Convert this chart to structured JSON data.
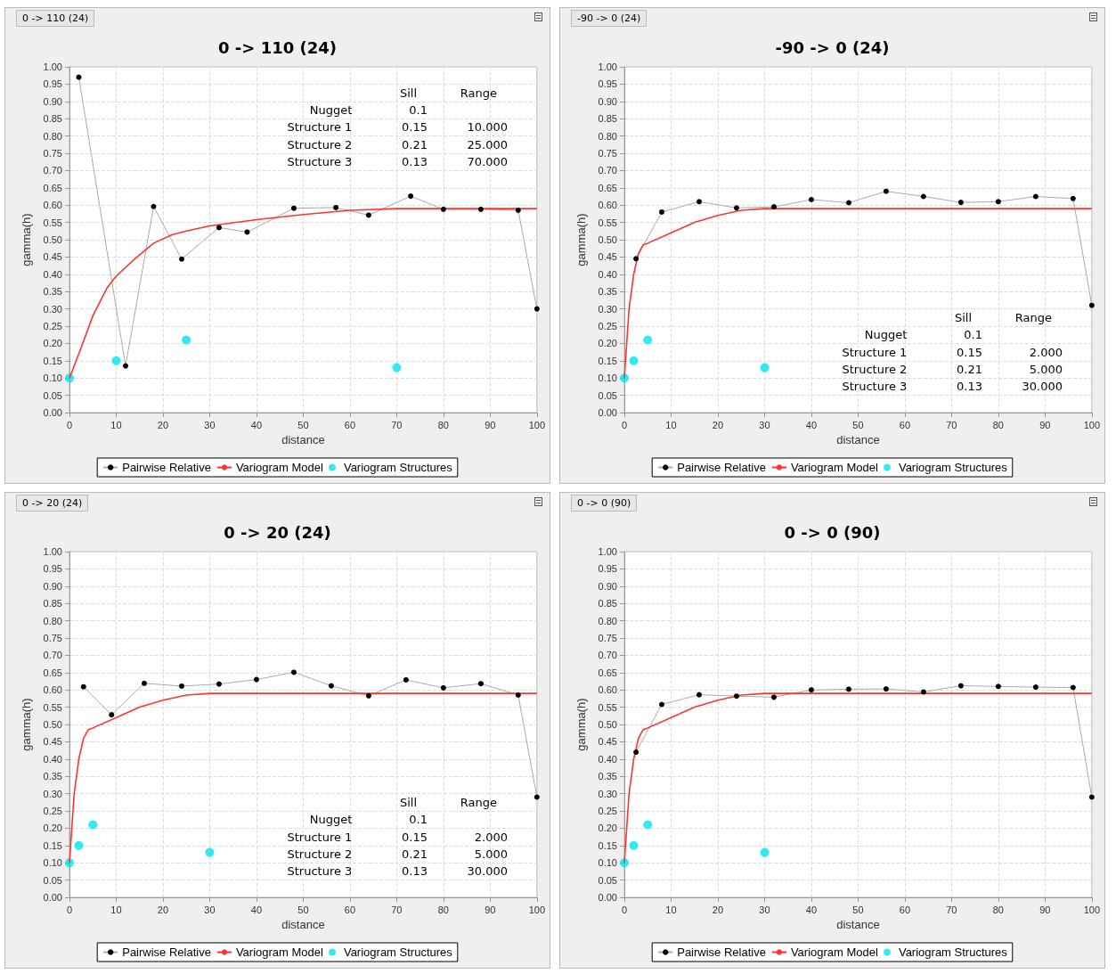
{
  "chart_data": [
    {
      "type": "line",
      "title": "0 -> 110 (24)",
      "xlabel": "distance",
      "ylabel": "gamma(h)",
      "xlim": [
        0,
        100
      ],
      "xticks": [
        0,
        10,
        20,
        30,
        40,
        50,
        60,
        70,
        80,
        90,
        100
      ],
      "ylim": [
        0,
        1
      ],
      "yticks": [
        {
          "value": 0,
          "label": "0.00"
        },
        {
          "value": 0.05,
          "label": "0.05"
        },
        {
          "value": 0.1,
          "label": "0.10"
        },
        {
          "value": 0.15,
          "label": "0.15"
        },
        {
          "value": 0.2,
          "label": "0.20"
        },
        {
          "value": 0.25,
          "label": "0.25"
        },
        {
          "value": 0.3,
          "label": "0.30"
        },
        {
          "value": 0.35,
          "label": "0.35"
        },
        {
          "value": 0.4,
          "label": "0.40"
        },
        {
          "value": 0.45,
          "label": "0.45"
        },
        {
          "value": 0.5,
          "label": "0.50"
        },
        {
          "value": 0.55,
          "label": "0.55"
        },
        {
          "value": 0.6,
          "label": "0.60"
        },
        {
          "value": 0.65,
          "label": "0.65"
        },
        {
          "value": 0.7,
          "label": "0.70"
        },
        {
          "value": 0.75,
          "label": "0.75"
        },
        {
          "value": 0.8,
          "label": "0.80"
        },
        {
          "value": 0.85,
          "label": "0.85"
        },
        {
          "value": 0.9,
          "label": "0.90"
        },
        {
          "value": 0.95,
          "label": "0.95"
        },
        {
          "value": 1,
          "label": "1.00"
        }
      ],
      "grid": true,
      "legend": "bottom",
      "annotations": [
        "0 -> 110 (24)",
        "Sill",
        "Range",
        "Nugget",
        "0.1",
        "Structure 1",
        "0.15",
        "10.000",
        "Structure 2",
        "0.21",
        "25.000",
        "Structure 3",
        "0.13",
        "70.000"
      ],
      "series": [
        {
          "name": "Pairwise Relative",
          "marker": "circle",
          "color": "#000000",
          "x": [
            2,
            12,
            18,
            24,
            32,
            38,
            48,
            57,
            64,
            73,
            80,
            88,
            96,
            100
          ],
          "values": [
            0.97,
            0.135,
            0.596,
            0.444,
            0.535,
            0.522,
            0.591,
            0.593,
            0.571,
            0.626,
            0.588,
            0.588,
            0.585,
            0.3
          ]
        },
        {
          "name": "Variogram Model",
          "marker": "none",
          "color": "#ff3333",
          "x": [
            0,
            2,
            5,
            8,
            10,
            14,
            18,
            22,
            25,
            30,
            40,
            50,
            60,
            70,
            100
          ],
          "values": [
            0.1,
            0.17,
            0.28,
            0.36,
            0.395,
            0.445,
            0.49,
            0.515,
            0.525,
            0.54,
            0.558,
            0.573,
            0.585,
            0.59,
            0.59
          ]
        },
        {
          "name": "Variogram Structures",
          "type": "scatter",
          "marker": "circle",
          "color": "#00e5ee",
          "x": [
            0,
            10,
            25,
            70
          ],
          "values": [
            0.1,
            0.15,
            0.21,
            0.13
          ]
        }
      ]
    },
    {
      "type": "line",
      "title": "-90 -> 0 (24)",
      "xlabel": "distance",
      "ylabel": "gamma(h)",
      "xlim": [
        0,
        100
      ],
      "xticks": [
        0,
        10,
        20,
        30,
        40,
        50,
        60,
        70,
        80,
        90,
        100
      ],
      "ylim": [
        0,
        1
      ],
      "yticks": [
        {
          "value": 0,
          "label": "0.00"
        },
        {
          "value": 0.05,
          "label": "0.05"
        },
        {
          "value": 0.1,
          "label": "0.10"
        },
        {
          "value": 0.15,
          "label": "0.15"
        },
        {
          "value": 0.2,
          "label": "0.20"
        },
        {
          "value": 0.25,
          "label": "0.25"
        },
        {
          "value": 0.3,
          "label": "0.30"
        },
        {
          "value": 0.35,
          "label": "0.35"
        },
        {
          "value": 0.4,
          "label": "0.40"
        },
        {
          "value": 0.45,
          "label": "0.45"
        },
        {
          "value": 0.5,
          "label": "0.50"
        },
        {
          "value": 0.55,
          "label": "0.55"
        },
        {
          "value": 0.6,
          "label": "0.60"
        },
        {
          "value": 0.65,
          "label": "0.65"
        },
        {
          "value": 0.7,
          "label": "0.70"
        },
        {
          "value": 0.75,
          "label": "0.75"
        },
        {
          "value": 0.8,
          "label": "0.80"
        },
        {
          "value": 0.85,
          "label": "0.85"
        },
        {
          "value": 0.9,
          "label": "0.90"
        },
        {
          "value": 0.95,
          "label": "0.95"
        },
        {
          "value": 1,
          "label": "1.00"
        }
      ],
      "grid": true,
      "legend": "bottom",
      "annotations": [
        "-90 -> 0 (24)",
        "Sill",
        "Range",
        "Nugget",
        "0.1",
        "Structure 1",
        "0.15",
        "2.000",
        "Structure 2",
        "0.21",
        "5.000",
        "Structure 3",
        "0.13",
        "30.000"
      ],
      "series": [
        {
          "name": "Pairwise Relative",
          "marker": "circle",
          "color": "#000000",
          "x": [
            2.5,
            8,
            16,
            24,
            32,
            40,
            48,
            56,
            64,
            72,
            80,
            88,
            96,
            100
          ],
          "values": [
            0.445,
            0.58,
            0.61,
            0.592,
            0.595,
            0.616,
            0.607,
            0.64,
            0.625,
            0.608,
            0.61,
            0.625,
            0.619,
            0.31
          ]
        },
        {
          "name": "Variogram Model",
          "marker": "none",
          "color": "#ff3333",
          "x": [
            0,
            1,
            2,
            3,
            4,
            5,
            10,
            15,
            20,
            25,
            30,
            100
          ],
          "values": [
            0.1,
            0.3,
            0.4,
            0.46,
            0.485,
            0.49,
            0.52,
            0.55,
            0.57,
            0.585,
            0.59,
            0.59
          ]
        },
        {
          "name": "Variogram Structures",
          "type": "scatter",
          "marker": "circle",
          "color": "#00e5ee",
          "x": [
            0,
            2,
            5,
            30
          ],
          "values": [
            0.1,
            0.15,
            0.21,
            0.13
          ]
        }
      ]
    },
    {
      "type": "line",
      "title": "0 -> 20 (24)",
      "xlabel": "distance",
      "ylabel": "gamma(h)",
      "xlim": [
        0,
        100
      ],
      "xticks": [
        0,
        10,
        20,
        30,
        40,
        50,
        60,
        70,
        80,
        90,
        100
      ],
      "ylim": [
        0,
        1
      ],
      "yticks": [
        {
          "value": 0,
          "label": "0.00"
        },
        {
          "value": 0.05,
          "label": "0.05"
        },
        {
          "value": 0.1,
          "label": "0.10"
        },
        {
          "value": 0.15,
          "label": "0.15"
        },
        {
          "value": 0.2,
          "label": "0.20"
        },
        {
          "value": 0.25,
          "label": "0.25"
        },
        {
          "value": 0.3,
          "label": "0.30"
        },
        {
          "value": 0.35,
          "label": "0.35"
        },
        {
          "value": 0.4,
          "label": "0.40"
        },
        {
          "value": 0.45,
          "label": "0.45"
        },
        {
          "value": 0.5,
          "label": "0.50"
        },
        {
          "value": 0.55,
          "label": "0.55"
        },
        {
          "value": 0.6,
          "label": "0.60"
        },
        {
          "value": 0.65,
          "label": "0.65"
        },
        {
          "value": 0.7,
          "label": "0.70"
        },
        {
          "value": 0.75,
          "label": "0.75"
        },
        {
          "value": 0.8,
          "label": "0.80"
        },
        {
          "value": 0.85,
          "label": "0.85"
        },
        {
          "value": 0.9,
          "label": "0.90"
        },
        {
          "value": 0.95,
          "label": "0.95"
        },
        {
          "value": 1,
          "label": "1.00"
        }
      ],
      "grid": true,
      "legend": "bottom",
      "annotations": [
        "0 -> 20 (24)",
        "Sill",
        "Range",
        "Nugget",
        "0.1",
        "Structure 1",
        "0.15",
        "2.000",
        "Structure 2",
        "0.21",
        "5.000",
        "Structure 3",
        "0.13",
        "30.000"
      ],
      "series": [
        {
          "name": "Pairwise Relative",
          "marker": "circle",
          "color": "#000000",
          "x": [
            3,
            9,
            16,
            24,
            32,
            40,
            48,
            56,
            64,
            72,
            80,
            88,
            96,
            100
          ],
          "values": [
            0.609,
            0.528,
            0.619,
            0.611,
            0.617,
            0.63,
            0.651,
            0.612,
            0.583,
            0.629,
            0.606,
            0.618,
            0.585,
            0.29
          ]
        },
        {
          "name": "Variogram Model",
          "marker": "none",
          "color": "#ff3333",
          "x": [
            0,
            1,
            2,
            3,
            4,
            5,
            10,
            15,
            20,
            25,
            30,
            100
          ],
          "values": [
            0.1,
            0.3,
            0.4,
            0.46,
            0.485,
            0.49,
            0.52,
            0.55,
            0.57,
            0.585,
            0.59,
            0.59
          ]
        },
        {
          "name": "Variogram Structures",
          "type": "scatter",
          "marker": "circle",
          "color": "#00e5ee",
          "x": [
            0,
            2,
            5,
            30
          ],
          "values": [
            0.1,
            0.15,
            0.21,
            0.13
          ]
        }
      ]
    },
    {
      "type": "line",
      "title": "0 -> 0 (90)",
      "xlabel": "distance",
      "ylabel": "gamma(h)",
      "xlim": [
        0,
        100
      ],
      "xticks": [
        0,
        10,
        20,
        30,
        40,
        50,
        60,
        70,
        80,
        90,
        100
      ],
      "ylim": [
        0,
        1
      ],
      "yticks": [
        {
          "value": 0,
          "label": "0.00"
        },
        {
          "value": 0.05,
          "label": "0.05"
        },
        {
          "value": 0.1,
          "label": "0.10"
        },
        {
          "value": 0.15,
          "label": "0.15"
        },
        {
          "value": 0.2,
          "label": "0.20"
        },
        {
          "value": 0.25,
          "label": "0.25"
        },
        {
          "value": 0.3,
          "label": "0.30"
        },
        {
          "value": 0.35,
          "label": "0.35"
        },
        {
          "value": 0.4,
          "label": "0.40"
        },
        {
          "value": 0.45,
          "label": "0.45"
        },
        {
          "value": 0.5,
          "label": "0.50"
        },
        {
          "value": 0.55,
          "label": "0.55"
        },
        {
          "value": 0.6,
          "label": "0.60"
        },
        {
          "value": 0.65,
          "label": "0.65"
        },
        {
          "value": 0.7,
          "label": "0.70"
        },
        {
          "value": 0.75,
          "label": "0.75"
        },
        {
          "value": 0.8,
          "label": "0.80"
        },
        {
          "value": 0.85,
          "label": "0.85"
        },
        {
          "value": 0.9,
          "label": "0.90"
        },
        {
          "value": 0.95,
          "label": "0.95"
        },
        {
          "value": 1,
          "label": "1.00"
        }
      ],
      "grid": true,
      "legend": "bottom",
      "annotations": [
        "0 -> 0 (90)"
      ],
      "series": [
        {
          "name": "Pairwise Relative",
          "marker": "circle",
          "color": "#000000",
          "x": [
            2.5,
            8,
            16,
            24,
            32,
            40,
            48,
            56,
            64,
            72,
            80,
            88,
            96,
            100
          ],
          "values": [
            0.42,
            0.558,
            0.586,
            0.582,
            0.579,
            0.6,
            0.602,
            0.603,
            0.594,
            0.612,
            0.61,
            0.608,
            0.607,
            0.29
          ]
        },
        {
          "name": "Variogram Model",
          "marker": "none",
          "color": "#ff3333",
          "x": [
            0,
            1,
            2,
            3,
            4,
            5,
            10,
            15,
            20,
            25,
            30,
            100
          ],
          "values": [
            0.1,
            0.3,
            0.4,
            0.46,
            0.485,
            0.49,
            0.52,
            0.55,
            0.57,
            0.585,
            0.59,
            0.59
          ]
        },
        {
          "name": "Variogram Structures",
          "type": "scatter",
          "marker": "circle",
          "color": "#00e5ee",
          "x": [
            0,
            2,
            5,
            30
          ],
          "values": [
            0.1,
            0.15,
            0.21,
            0.13
          ]
        }
      ]
    }
  ]
}
